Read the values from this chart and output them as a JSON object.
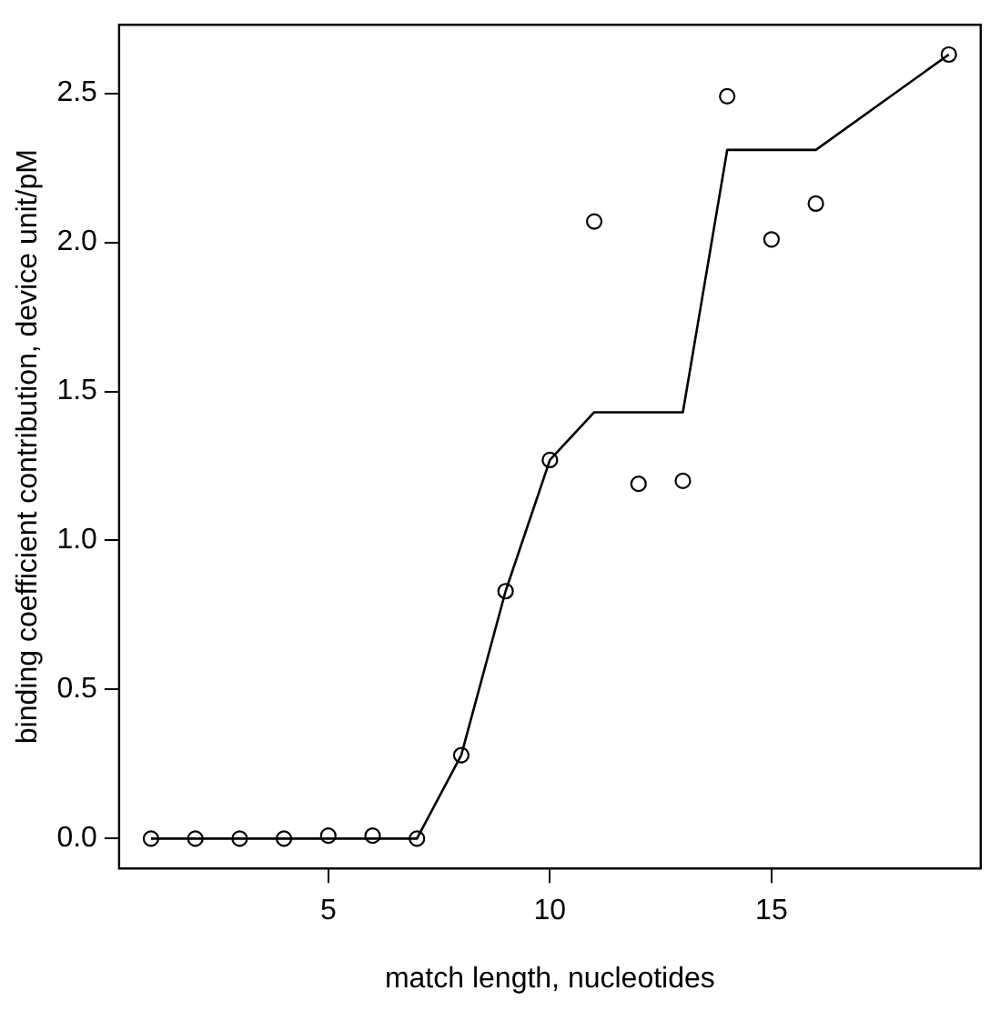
{
  "chart_data": {
    "type": "scatter",
    "xlabel": "match length, nucleotides",
    "ylabel": "binding coefficient contribution, device unit/pM",
    "xlim": [
      0.28,
      19.72
    ],
    "ylim": [
      -0.1,
      2.73
    ],
    "xticks": [
      5,
      10,
      15
    ],
    "yticks": [
      {
        "value": 0,
        "label": "0.0"
      },
      {
        "value": 0.5,
        "label": "0.5"
      },
      {
        "value": 1,
        "label": "1.0"
      },
      {
        "value": 1.5,
        "label": "1.5"
      },
      {
        "value": 2,
        "label": "2.0"
      },
      {
        "value": 2.5,
        "label": "2.5"
      }
    ],
    "grid": false,
    "legend": false,
    "series": [
      {
        "type": "line",
        "color": "#000000",
        "marker": "none",
        "line_style": "solid",
        "x": [
          1,
          7,
          8,
          9,
          10,
          11,
          13,
          14,
          16,
          19
        ],
        "values": [
          0,
          0,
          0.28,
          0.83,
          1.27,
          1.43,
          1.43,
          2.31,
          2.31,
          2.63
        ]
      },
      {
        "color": "#000000",
        "marker": "circle",
        "x": [
          1,
          2,
          3,
          4,
          5,
          6,
          7,
          8,
          9,
          10,
          11,
          12,
          13,
          14,
          15,
          16,
          19
        ],
        "values": [
          0,
          0,
          0,
          0,
          0.01,
          0.01,
          0,
          0.28,
          0.83,
          1.27,
          2.07,
          1.19,
          1.2,
          2.49,
          2.01,
          2.13,
          2.63
        ]
      }
    ]
  }
}
